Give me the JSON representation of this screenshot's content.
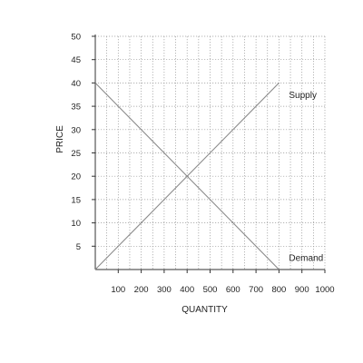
{
  "chart_data": {
    "type": "line",
    "title": "",
    "xlabel": "QUANTITY",
    "ylabel": "PRICE",
    "xlim": [
      0,
      1000
    ],
    "ylim": [
      0,
      50
    ],
    "x_ticks": [
      100,
      200,
      300,
      400,
      500,
      600,
      700,
      800,
      900,
      1000
    ],
    "y_ticks": [
      5,
      10,
      15,
      20,
      25,
      30,
      35,
      40,
      45,
      50
    ],
    "grid": true,
    "grid_style": "dotted",
    "series": [
      {
        "name": "Supply",
        "points": [
          [
            0,
            0
          ],
          [
            800,
            40
          ]
        ],
        "label_at": [
          800,
          37.5
        ]
      },
      {
        "name": "Demand",
        "points": [
          [
            0,
            40
          ],
          [
            800,
            0
          ]
        ],
        "label_at": [
          800,
          2.5
        ]
      }
    ],
    "colors": {
      "line": "#8a8a8a",
      "grid": "#9a9a9a",
      "axis": "#333333"
    }
  }
}
